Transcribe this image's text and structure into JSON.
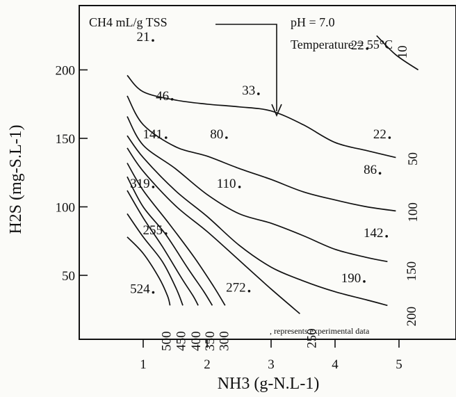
{
  "chart_data": {
    "type": "line",
    "title": "",
    "xlabel": "NH3 (g-N.L-1)",
    "ylabel": "H2S (mg-S.L-1)",
    "xlim": [
      0.6,
      5.6
    ],
    "ylim": [
      0,
      235
    ],
    "x_ticks": [
      "1",
      "2",
      "3",
      "4",
      "5"
    ],
    "y_ticks": [
      "50",
      "100",
      "150",
      "200"
    ],
    "y_tick_values": [
      50,
      100,
      150,
      200
    ],
    "x_tick_values": [
      1,
      2,
      3,
      4,
      5
    ],
    "grid": false,
    "legend_label": "CH4 mL/g TSS",
    "conditions": [
      "pH = 7.0",
      "Temperature = 55°C"
    ],
    "footnote": ", represents experimental data",
    "series": [
      {
        "name": "10",
        "label_at": [
          5.12,
          213
        ],
        "points": [
          [
            4.65,
            225
          ],
          [
            4.95,
            211
          ],
          [
            5.3,
            200
          ]
        ]
      },
      {
        "name": "50",
        "label_at": [
          5.28,
          135
        ],
        "points": [
          [
            0.75,
            196
          ],
          [
            1.0,
            184
          ],
          [
            1.5,
            178
          ],
          [
            2.0,
            175
          ],
          [
            2.5,
            173
          ],
          [
            3.0,
            170
          ],
          [
            3.5,
            160
          ],
          [
            4.0,
            147
          ],
          [
            4.5,
            141
          ],
          [
            4.95,
            136
          ]
        ]
      },
      {
        "name": "100",
        "label_at": [
          5.28,
          96
        ],
        "points": [
          [
            0.75,
            181
          ],
          [
            1.0,
            160
          ],
          [
            1.5,
            144
          ],
          [
            2.0,
            137
          ],
          [
            2.5,
            128
          ],
          [
            3.0,
            120
          ],
          [
            3.5,
            111
          ],
          [
            4.0,
            105
          ],
          [
            4.5,
            100
          ],
          [
            4.95,
            97
          ]
        ]
      },
      {
        "name": "150",
        "label_at": [
          5.26,
          53
        ],
        "points": [
          [
            0.75,
            166
          ],
          [
            1.0,
            145
          ],
          [
            1.5,
            128
          ],
          [
            2.0,
            109
          ],
          [
            2.5,
            95
          ],
          [
            3.0,
            88
          ],
          [
            3.5,
            79
          ],
          [
            4.0,
            69
          ],
          [
            4.5,
            63
          ],
          [
            4.82,
            60
          ]
        ]
      },
      {
        "name": "200",
        "label_at": [
          5.26,
          20
        ],
        "points": [
          [
            0.75,
            152
          ],
          [
            1.0,
            136
          ],
          [
            1.5,
            112
          ],
          [
            2.0,
            93
          ],
          [
            2.5,
            72
          ],
          [
            3.0,
            56
          ],
          [
            3.5,
            46
          ],
          [
            4.0,
            38
          ],
          [
            4.5,
            32
          ],
          [
            4.82,
            28
          ]
        ]
      },
      {
        "name": "250",
        "label_at": [
          3.7,
          4
        ],
        "points": [
          [
            0.75,
            143
          ],
          [
            1.0,
            126
          ],
          [
            1.5,
            101
          ],
          [
            2.0,
            82
          ],
          [
            2.5,
            61
          ],
          [
            3.0,
            40
          ],
          [
            3.45,
            22
          ]
        ]
      },
      {
        "name": "300",
        "label_at": [
          2.33,
          2
        ],
        "points": [
          [
            0.75,
            132
          ],
          [
            1.0,
            112
          ],
          [
            1.4,
            88
          ],
          [
            1.8,
            63
          ],
          [
            2.1,
            42
          ],
          [
            2.28,
            28
          ]
        ]
      },
      {
        "name": "350",
        "label_at": [
          2.11,
          2
        ],
        "points": [
          [
            0.75,
            122
          ],
          [
            1.0,
            100
          ],
          [
            1.35,
            80
          ],
          [
            1.7,
            55
          ],
          [
            1.95,
            38
          ],
          [
            2.08,
            28
          ]
        ]
      },
      {
        "name": "400",
        "label_at": [
          1.89,
          2
        ],
        "points": [
          [
            0.75,
            112
          ],
          [
            1.0,
            92
          ],
          [
            1.3,
            71
          ],
          [
            1.6,
            48
          ],
          [
            1.78,
            35
          ],
          [
            1.86,
            28
          ]
        ]
      },
      {
        "name": "450",
        "label_at": [
          1.66,
          2
        ],
        "points": [
          [
            0.75,
            95
          ],
          [
            1.0,
            78
          ],
          [
            1.3,
            60
          ],
          [
            1.52,
            40
          ],
          [
            1.62,
            28
          ]
        ]
      },
      {
        "name": "500",
        "label_at": [
          1.43,
          2
        ],
        "points": [
          [
            0.75,
            78
          ],
          [
            1.0,
            66
          ],
          [
            1.25,
            48
          ],
          [
            1.38,
            35
          ],
          [
            1.42,
            28
          ]
        ]
      }
    ],
    "experimental_points": [
      {
        "label": "21",
        "x": 1.0,
        "y": 221
      },
      {
        "label": "22",
        "x": 4.35,
        "y": 215
      },
      {
        "label": "46",
        "x": 1.3,
        "y": 178
      },
      {
        "label": "33",
        "x": 2.65,
        "y": 182
      },
      {
        "label": "141",
        "x": 1.15,
        "y": 150
      },
      {
        "label": "80",
        "x": 2.15,
        "y": 150
      },
      {
        "label": "22",
        "x": 4.7,
        "y": 150
      },
      {
        "label": "86",
        "x": 4.55,
        "y": 124
      },
      {
        "label": "319",
        "x": 0.95,
        "y": 114
      },
      {
        "label": "110",
        "x": 2.3,
        "y": 114
      },
      {
        "label": "255",
        "x": 1.15,
        "y": 80
      },
      {
        "label": "142",
        "x": 4.6,
        "y": 78
      },
      {
        "label": "190",
        "x": 4.25,
        "y": 45
      },
      {
        "label": "272",
        "x": 2.45,
        "y": 38
      },
      {
        "label": "524",
        "x": 0.95,
        "y": 37
      }
    ]
  }
}
